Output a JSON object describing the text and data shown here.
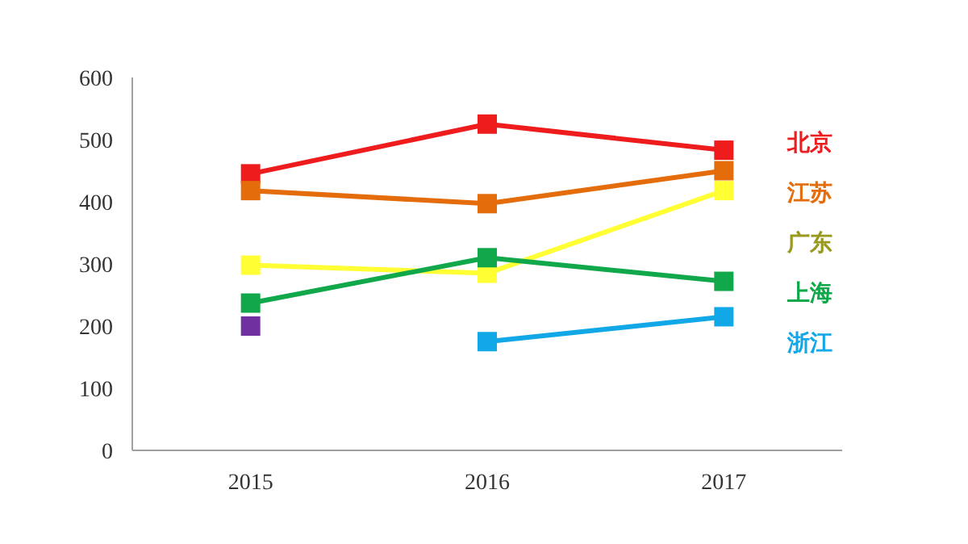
{
  "chart_data": {
    "type": "line",
    "categories": [
      "2015",
      "2016",
      "2017"
    ],
    "ylim": [
      0,
      600
    ],
    "yticks": [
      0,
      100,
      200,
      300,
      400,
      500,
      600
    ],
    "grid": false,
    "legend": "right",
    "marker": "square",
    "line_style": "solid",
    "series": [
      {
        "name": "北京",
        "color": "#ee1c1c",
        "values": [
          445,
          525,
          483
        ]
      },
      {
        "name": "江苏",
        "color": "#e46c0a",
        "values": [
          418,
          397,
          450
        ]
      },
      {
        "name": "广东",
        "color": "#ffff33",
        "values": [
          298,
          285,
          418
        ]
      },
      {
        "name": "上海",
        "color": "#10a84a",
        "values": [
          237,
          310,
          272
        ]
      },
      {
        "name": "浙江",
        "color": "#12a8e8",
        "values": [
          null,
          175,
          215
        ]
      },
      {
        "color": "#7030a0",
        "values": [
          200,
          null,
          null
        ]
      }
    ]
  }
}
